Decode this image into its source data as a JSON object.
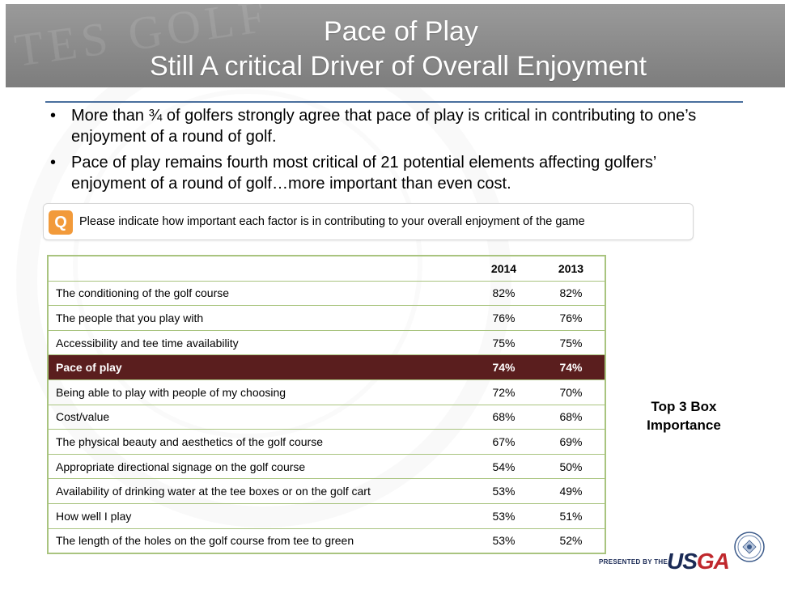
{
  "header": {
    "title_line1": "Pace of Play",
    "title_line2": "Still A critical Driver of Overall Enjoyment",
    "watermark": "TES GOLF"
  },
  "bullets": [
    "More than ¾ of golfers strongly agree that pace of play is critical in contributing to one’s enjoyment of a round of golf.",
    "Pace of play remains fourth most critical of 21 potential elements affecting golfers’ enjoyment of a round of golf…more important than even cost."
  ],
  "question": {
    "badge": "Q",
    "text": "Please indicate how important each factor is in contributing to your overall enjoyment of the game"
  },
  "table": {
    "headers": [
      "",
      "2014",
      "2013"
    ],
    "rows": [
      {
        "factor": "The conditioning of the golf course",
        "y2014": "82%",
        "y2013": "82%"
      },
      {
        "factor": "The people that you play with",
        "y2014": "76%",
        "y2013": "76%"
      },
      {
        "factor": "Accessibility and tee time availability",
        "y2014": "75%",
        "y2013": "75%"
      },
      {
        "factor": "Pace of play",
        "y2014": "74%",
        "y2013": "74%"
      },
      {
        "factor": "Being able to play with people of my choosing",
        "y2014": "72%",
        "y2013": "70%"
      },
      {
        "factor": "Cost/value",
        "y2014": "68%",
        "y2013": "68%"
      },
      {
        "factor": "The physical beauty and aesthetics of the golf course",
        "y2014": "67%",
        "y2013": "69%"
      },
      {
        "factor": "Appropriate directional signage on the golf course",
        "y2014": "54%",
        "y2013": "50%"
      },
      {
        "factor": "Availability of drinking water at the tee boxes or on the golf cart",
        "y2014": "53%",
        "y2013": "49%"
      },
      {
        "factor": "How well I play",
        "y2014": "53%",
        "y2013": "51%"
      },
      {
        "factor": "The length of the holes on the golf course from tee to green",
        "y2014": "53%",
        "y2013": "52%"
      }
    ]
  },
  "side_label": {
    "line1": "Top 3 Box",
    "line2": "Importance"
  },
  "footer": {
    "presented_by": "PRESENTED BY THE",
    "logo_us": "US",
    "logo_ga": "GA"
  },
  "colors": {
    "highlight_row": "#5a1e1e",
    "table_border": "#a9c47f",
    "question_badge": "#f29a3a",
    "rule": "#4a6f9d"
  }
}
